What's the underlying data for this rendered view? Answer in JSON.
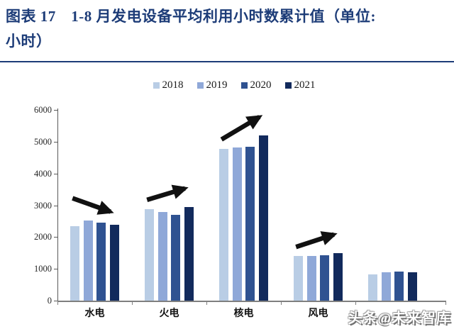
{
  "header": {
    "title_line1": "图表 17　1-8 月发电设备平均利用小时数累计值（单位:",
    "title_line2": "小时）",
    "title_color": "#1d3c78"
  },
  "watermark": {
    "text": "头条@未来智库"
  },
  "chart_data": {
    "type": "bar",
    "title": "1-8月发电设备平均利用小时数累计值",
    "unit_label": "小时",
    "categories": [
      "水电",
      "火电",
      "核电",
      "风电",
      ""
    ],
    "series": [
      {
        "name": "2018",
        "color": "#b9cde5",
        "values": [
          2340,
          2880,
          4780,
          1400,
          830
        ]
      },
      {
        "name": "2019",
        "color": "#8fa8d8",
        "values": [
          2530,
          2790,
          4810,
          1400,
          890
        ]
      },
      {
        "name": "2020",
        "color": "#2f5291",
        "values": [
          2450,
          2690,
          4840,
          1430,
          910
        ]
      },
      {
        "name": "2021",
        "color": "#122a5c",
        "values": [
          2380,
          2950,
          5200,
          1500,
          890
        ]
      }
    ],
    "ylim": [
      0,
      6000
    ],
    "yticks": [
      0,
      1000,
      2000,
      3000,
      4000,
      5000,
      6000
    ],
    "grid": false,
    "legend_position": "top",
    "annotation_color": "#111111",
    "annotations": [
      {
        "category": "水电",
        "trend": "down"
      },
      {
        "category": "火电",
        "trend": "up"
      },
      {
        "category": "核电",
        "trend": "up"
      },
      {
        "category": "风电",
        "trend": "up"
      }
    ]
  }
}
